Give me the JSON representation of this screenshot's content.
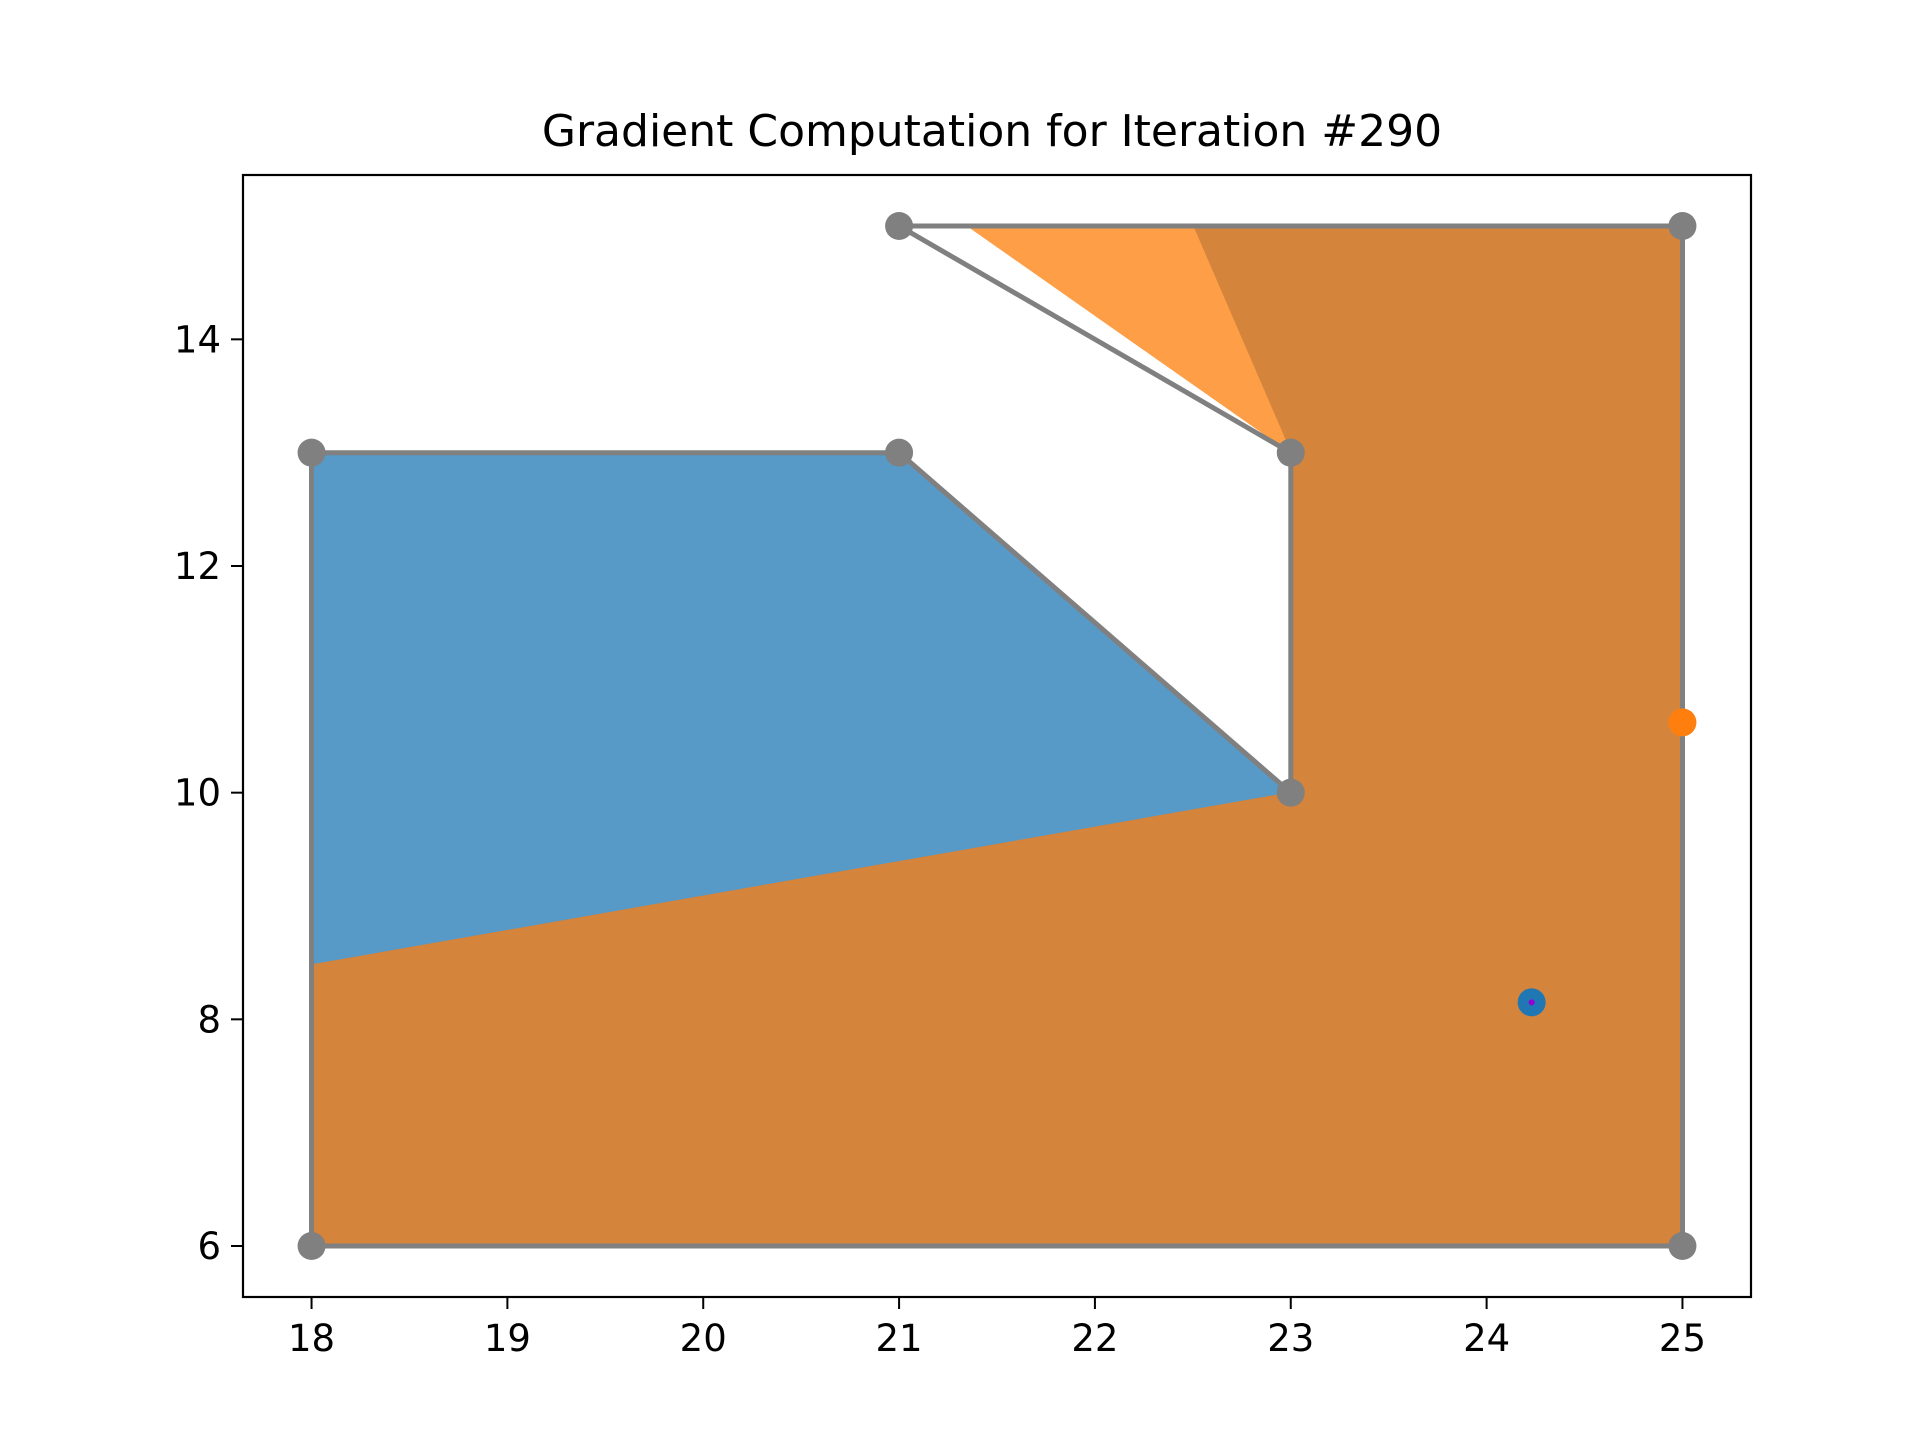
{
  "chart_data": {
    "type": "area",
    "title": "Gradient Computation for Iteration #290",
    "xlabel": "",
    "ylabel": "",
    "xlim": [
      17.65,
      25.35
    ],
    "ylim": [
      5.55,
      15.45
    ],
    "xticks": [
      18,
      19,
      20,
      21,
      22,
      23,
      24,
      25
    ],
    "yticks": [
      6,
      8,
      10,
      12,
      14
    ],
    "grid": false,
    "colors": {
      "blue_region": "#5799c7",
      "orange_region": "#d4843b",
      "orange_bright": "#fe9e47",
      "outline": "#808080",
      "blue_point": "#1f77b4",
      "orange_point": "#ff7f0e",
      "center_dot": "#9400d3"
    },
    "polygon_outline": [
      [
        18,
        6
      ],
      [
        25,
        6
      ],
      [
        25,
        15
      ],
      [
        21,
        15
      ],
      [
        23,
        13
      ],
      [
        23,
        10
      ],
      [
        21,
        13
      ],
      [
        18,
        13
      ]
    ],
    "regions": [
      {
        "color_key": "blue_region",
        "points": [
          [
            18,
            13
          ],
          [
            21,
            13
          ],
          [
            23,
            10
          ],
          [
            18,
            8.48
          ]
        ]
      },
      {
        "color_key": "orange_region",
        "points": [
          [
            18,
            8.48
          ],
          [
            23,
            10
          ],
          [
            23,
            13
          ],
          [
            22.5,
            15
          ],
          [
            25,
            15
          ],
          [
            25,
            6
          ],
          [
            18,
            6
          ]
        ]
      },
      {
        "color_key": "orange_bright",
        "points": [
          [
            21.35,
            15
          ],
          [
            22.5,
            15
          ],
          [
            23,
            13
          ]
        ]
      }
    ],
    "points": [
      {
        "x": 24.23,
        "y": 8.15,
        "color_key": "blue_point"
      },
      {
        "x": 25,
        "y": 10.62,
        "color_key": "orange_point"
      }
    ],
    "center_point": {
      "x": 24.23,
      "y": 8.15,
      "color_key": "center_dot"
    }
  }
}
